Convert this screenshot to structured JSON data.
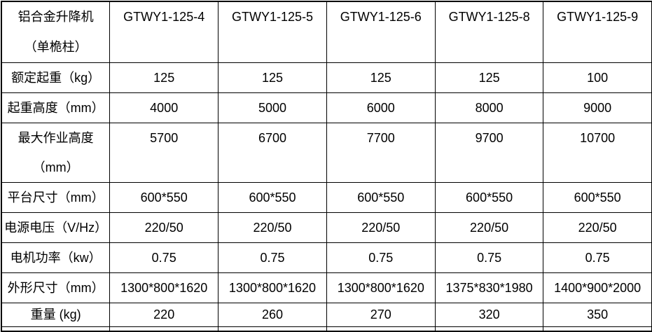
{
  "colors": {
    "border": "#000000",
    "text": "#000000",
    "background": "#ffffff"
  },
  "table": {
    "corner_label": "铝合金升降机\n（单桅柱）",
    "models": [
      "GTWY1-125-4",
      "GTWY1-125-5",
      "GTWY1-125-6",
      "GTWY1-125-8",
      "GTWY1-125-9"
    ],
    "rows": [
      {
        "label": "额定起重（kg）",
        "values": [
          "125",
          "125",
          "125",
          "125",
          "100"
        ]
      },
      {
        "label": "起重高度（mm）",
        "values": [
          "4000",
          "5000",
          "6000",
          "8000",
          "9000"
        ]
      },
      {
        "label": "最大作业高度\n（mm）",
        "values": [
          "5700",
          "6700",
          "7700",
          "9700",
          "10700"
        ]
      },
      {
        "label": "平台尺寸（mm）",
        "values": [
          "600*550",
          "600*550",
          "600*550",
          "600*550",
          "600*550"
        ]
      },
      {
        "label": "电源电压（V/Hz）",
        "values": [
          "220/50",
          "220/50",
          "220/50",
          "220/50",
          "220/50"
        ]
      },
      {
        "label": "电机功率（kw）",
        "values": [
          "0.75",
          "0.75",
          "0.75",
          "0.75",
          "0.75"
        ]
      },
      {
        "label": "外形尺寸（mm）",
        "values": [
          "1300*800*1620",
          "1300*800*1620",
          "1300*800*1620",
          "1375*830*1980",
          "1400*900*2000"
        ]
      },
      {
        "label": "重量 (kg)",
        "values": [
          "220",
          "260",
          "270",
          "320",
          "350"
        ]
      }
    ]
  }
}
